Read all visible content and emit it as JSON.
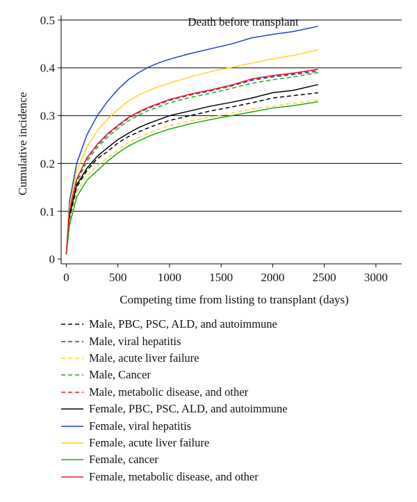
{
  "chart_data": {
    "type": "line",
    "title": "Death before transplant",
    "xlabel": "Competing time from listing to transplant (days)",
    "ylabel": "Cumulative incidence",
    "xlim": [
      -50,
      3250
    ],
    "ylim": [
      -0.01,
      0.51
    ],
    "xticks": [
      0,
      500,
      1000,
      1500,
      2000,
      2500,
      3000
    ],
    "yticks": [
      0,
      0.1,
      0.2,
      0.3,
      0.4,
      0.5
    ],
    "xtick_labels": [
      "0",
      "500",
      "1000",
      "1500",
      "2000",
      "2500",
      "3000"
    ],
    "ytick_labels": [
      "0",
      "0.1",
      "0.2",
      "0.3",
      "0.4",
      "0.5"
    ],
    "grid": "horizontal",
    "legend_position": "below",
    "series": [
      {
        "name": "Male, PBC, PSC, ALD, and autoimmune",
        "color": "#000000",
        "style": "dashed",
        "x": [
          0,
          30,
          100,
          200,
          300,
          400,
          500,
          600,
          700,
          800,
          900,
          1000,
          1200,
          1400,
          1600,
          1800,
          2000,
          2200,
          2440
        ],
        "y": [
          0.01,
          0.085,
          0.15,
          0.185,
          0.21,
          0.225,
          0.243,
          0.256,
          0.266,
          0.275,
          0.283,
          0.29,
          0.3,
          0.31,
          0.318,
          0.327,
          0.337,
          0.342,
          0.348
        ]
      },
      {
        "name": "Male, viral hepatitis",
        "color": "#1f3fcf",
        "style": "dashed",
        "x": [
          0,
          30,
          100,
          200,
          300,
          400,
          500,
          600,
          700,
          800,
          900,
          1000,
          1200,
          1400,
          1600,
          1800,
          2000,
          2200,
          2440
        ],
        "y": [
          0.01,
          0.1,
          0.165,
          0.21,
          0.238,
          0.26,
          0.278,
          0.294,
          0.306,
          0.316,
          0.324,
          0.332,
          0.343,
          0.352,
          0.362,
          0.374,
          0.381,
          0.386,
          0.393
        ]
      },
      {
        "name": "Male, acute liver failure",
        "color": "#ffd21f",
        "style": "dashed",
        "x": [
          0,
          30,
          100,
          200,
          300,
          400,
          500,
          600,
          700,
          800,
          900,
          1000,
          1200,
          1400,
          1600,
          1800,
          2000,
          2200,
          2440
        ],
        "y": [
          0.01,
          0.075,
          0.14,
          0.175,
          0.195,
          0.212,
          0.228,
          0.243,
          0.254,
          0.264,
          0.272,
          0.279,
          0.289,
          0.297,
          0.305,
          0.314,
          0.32,
          0.326,
          0.333
        ]
      },
      {
        "name": "Male, Cancer",
        "color": "#1aa81a",
        "style": "dashed",
        "x": [
          0,
          30,
          100,
          200,
          300,
          400,
          500,
          600,
          700,
          800,
          900,
          1000,
          1200,
          1400,
          1600,
          1800,
          2000,
          2200,
          2440
        ],
        "y": [
          0.01,
          0.095,
          0.16,
          0.205,
          0.233,
          0.255,
          0.273,
          0.289,
          0.301,
          0.311,
          0.319,
          0.327,
          0.338,
          0.347,
          0.357,
          0.368,
          0.375,
          0.381,
          0.39
        ]
      },
      {
        "name": "Male, metabolic disease, and other",
        "color": "#e02020",
        "style": "dashed",
        "x": [
          0,
          30,
          100,
          200,
          300,
          400,
          500,
          600,
          700,
          800,
          900,
          1000,
          1200,
          1400,
          1600,
          1800,
          2000,
          2200,
          2440
        ],
        "y": [
          0.01,
          0.1,
          0.166,
          0.211,
          0.239,
          0.261,
          0.279,
          0.295,
          0.307,
          0.317,
          0.325,
          0.333,
          0.344,
          0.353,
          0.363,
          0.376,
          0.383,
          0.388,
          0.396
        ]
      },
      {
        "name": "Female, PBC, PSC, ALD, and autoimmune",
        "color": "#000000",
        "style": "solid",
        "x": [
          0,
          30,
          100,
          200,
          300,
          400,
          500,
          600,
          700,
          800,
          900,
          1000,
          1200,
          1400,
          1600,
          1800,
          2000,
          2200,
          2440
        ],
        "y": [
          0.01,
          0.09,
          0.155,
          0.19,
          0.215,
          0.233,
          0.25,
          0.263,
          0.275,
          0.284,
          0.292,
          0.3,
          0.31,
          0.32,
          0.328,
          0.337,
          0.348,
          0.353,
          0.365
        ]
      },
      {
        "name": "Female, viral hepatitis",
        "color": "#1f3fcf",
        "style": "solid",
        "x": [
          0,
          30,
          100,
          200,
          300,
          400,
          500,
          600,
          700,
          800,
          900,
          1000,
          1200,
          1400,
          1600,
          1800,
          2000,
          2200,
          2440
        ],
        "y": [
          0.01,
          0.12,
          0.2,
          0.26,
          0.3,
          0.33,
          0.355,
          0.375,
          0.39,
          0.402,
          0.411,
          0.418,
          0.43,
          0.44,
          0.45,
          0.463,
          0.47,
          0.476,
          0.487
        ]
      },
      {
        "name": "Female, acute liver failure",
        "color": "#ffd21f",
        "style": "solid",
        "x": [
          0,
          30,
          100,
          200,
          300,
          400,
          500,
          600,
          700,
          800,
          900,
          1000,
          1200,
          1400,
          1600,
          1800,
          2000,
          2200,
          2440
        ],
        "y": [
          0.01,
          0.11,
          0.185,
          0.235,
          0.268,
          0.293,
          0.313,
          0.33,
          0.343,
          0.353,
          0.361,
          0.368,
          0.381,
          0.392,
          0.401,
          0.41,
          0.419,
          0.426,
          0.438
        ]
      },
      {
        "name": "Female, cancer",
        "color": "#1aa81a",
        "style": "solid",
        "x": [
          0,
          30,
          100,
          200,
          300,
          400,
          500,
          600,
          700,
          800,
          900,
          1000,
          1200,
          1400,
          1600,
          1800,
          2000,
          2200,
          2440
        ],
        "y": [
          0.01,
          0.07,
          0.13,
          0.165,
          0.185,
          0.205,
          0.222,
          0.236,
          0.247,
          0.257,
          0.265,
          0.272,
          0.283,
          0.292,
          0.3,
          0.308,
          0.316,
          0.321,
          0.329
        ]
      },
      {
        "name": "Female, metabolic disease, and other",
        "color": "#e02020",
        "style": "solid",
        "x": [
          0,
          30,
          100,
          200,
          300,
          400,
          500,
          600,
          700,
          800,
          900,
          1000,
          1200,
          1400,
          1600,
          1800,
          2000,
          2200,
          2440
        ],
        "y": [
          0.01,
          0.102,
          0.167,
          0.212,
          0.24,
          0.262,
          0.28,
          0.296,
          0.308,
          0.318,
          0.326,
          0.334,
          0.345,
          0.354,
          0.364,
          0.377,
          0.384,
          0.389,
          0.397
        ]
      }
    ]
  }
}
